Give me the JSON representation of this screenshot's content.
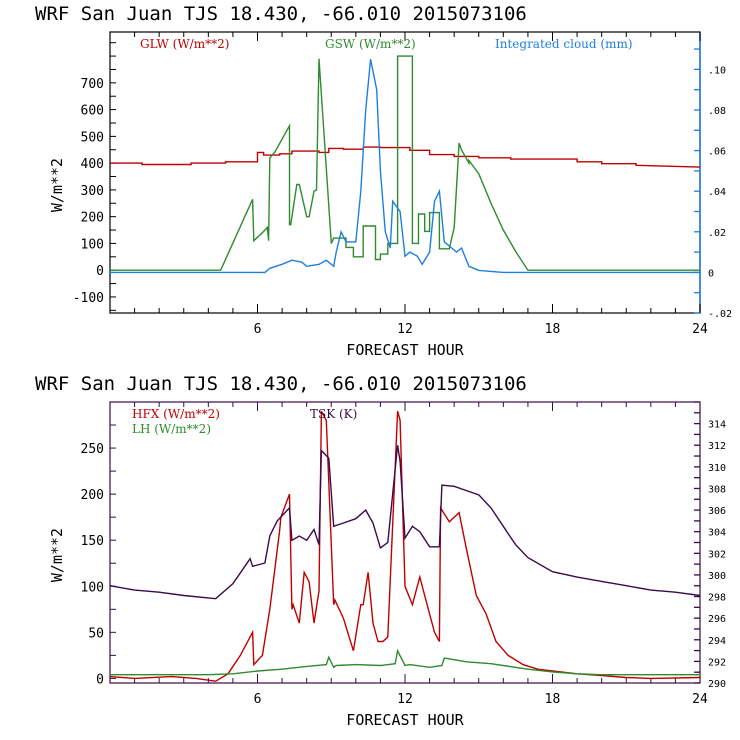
{
  "chart_data": [
    {
      "type": "line",
      "title": "WRF  San Juan TJS  18.430, -66.010  2015073106",
      "xlabel": "FORECAST HOUR",
      "ylabel": "W/m**2",
      "y2label": "",
      "xlim": [
        0,
        24
      ],
      "ylim": [
        -160,
        890
      ],
      "y2lim": [
        -0.02,
        0.1184
      ],
      "xticks": [
        "6",
        "12",
        "18",
        "24"
      ],
      "yticks": [
        "-100",
        "0",
        "100",
        "200",
        "300",
        "400",
        "500",
        "600",
        "700"
      ],
      "y2ticks": [
        "-.02",
        "0",
        ".02",
        ".04",
        ".06",
        ".08",
        ".10"
      ],
      "grid": false,
      "legend_position": "top",
      "series": [
        {
          "name": "GLW (W/m**2)",
          "color": "#c00000",
          "axis": "left",
          "x": [
            0,
            1.3,
            1.3,
            3.3,
            3.3,
            4.7,
            4.7,
            6,
            6,
            6.25,
            6.25,
            6.9,
            6.9,
            7.4,
            7.4,
            8.5,
            8.5,
            8.9,
            8.9,
            9.5,
            9.5,
            10.3,
            10.3,
            11.0,
            11.0,
            12.2,
            12.2,
            13.0,
            13.0,
            14.0,
            14.0,
            15.0,
            15.0,
            16.3,
            16.3,
            19.0,
            19.0,
            20.0,
            20.0,
            21.4,
            21.4,
            24
          ],
          "y": [
            400,
            400,
            395,
            395,
            400,
            400,
            405,
            405,
            440,
            440,
            430,
            430,
            435,
            435,
            445,
            445,
            440,
            440,
            455,
            455,
            452,
            452,
            460,
            460,
            458,
            458,
            448,
            448,
            432,
            432,
            425,
            425,
            420,
            420,
            415,
            415,
            405,
            405,
            398,
            398,
            392,
            385
          ]
        },
        {
          "name": "GSW (W/m**2)",
          "color": "#2e8b2e",
          "axis": "left",
          "x": [
            0,
            4.5,
            4.6,
            5.8,
            5.85,
            6.2,
            6.4,
            6.45,
            6.5,
            6.7,
            7.3,
            7.3,
            7.35,
            7.6,
            7.7,
            8.0,
            8.1,
            8.3,
            8.4,
            8.5,
            8.5,
            9.0,
            9.0,
            9.1,
            9.6,
            9.6,
            9.9,
            9.9,
            10.3,
            10.3,
            10.8,
            10.8,
            11.0,
            11.0,
            11.3,
            11.3,
            11.7,
            11.7,
            12.3,
            12.3,
            12.55,
            12.55,
            12.8,
            12.8,
            13.0,
            13.0,
            13.4,
            13.4,
            13.8,
            14.0,
            14.2,
            14.3,
            14.6,
            14.6,
            15.0,
            15.5,
            16.0,
            16.5,
            17.0,
            24
          ],
          "y": [
            0,
            0,
            20,
            265,
            110,
            140,
            160,
            110,
            420,
            440,
            540,
            170,
            170,
            320,
            320,
            200,
            200,
            295,
            300,
            790,
            790,
            100,
            100,
            120,
            120,
            85,
            85,
            50,
            50,
            165,
            165,
            40,
            40,
            60,
            60,
            100,
            100,
            800,
            800,
            100,
            100,
            210,
            210,
            145,
            145,
            215,
            215,
            80,
            80,
            160,
            475,
            450,
            400,
            410,
            360,
            250,
            150,
            70,
            0,
            0
          ]
        },
        {
          "name": "Integrated cloud (mm)",
          "color": "#1f7fe0",
          "axis": "right",
          "x": [
            0,
            6.3,
            6.5,
            7.0,
            7.4,
            7.8,
            8.0,
            8.5,
            8.8,
            9.1,
            9.2,
            9.4,
            9.6,
            10.0,
            10.2,
            10.4,
            10.6,
            10.85,
            11.0,
            11.2,
            11.4,
            11.5,
            11.8,
            12.0,
            12.2,
            12.5,
            12.7,
            13.0,
            13.2,
            13.4,
            13.6,
            13.9,
            14.1,
            14.3,
            14.6,
            15.0,
            16,
            24
          ],
          "y": [
            0,
            0,
            0.002,
            0.004,
            0.006,
            0.005,
            0.003,
            0.004,
            0.006,
            0.003,
            0.01,
            0.02,
            0.015,
            0.015,
            0.04,
            0.08,
            0.105,
            0.09,
            0.05,
            0.02,
            0.012,
            0.035,
            0.03,
            0.008,
            0.01,
            0.008,
            0.004,
            0.01,
            0.035,
            0.04,
            0.015,
            0.012,
            0.01,
            0.012,
            0.003,
            0.001,
            0,
            0
          ]
        }
      ]
    },
    {
      "type": "line",
      "title": "WRF  San Juan TJS  18.430, -66.010  2015073106",
      "xlabel": "FORECAST HOUR",
      "ylabel": "W/m**2",
      "xlim": [
        0,
        24
      ],
      "ylim": [
        -5,
        300
      ],
      "y2lim": [
        290,
        316
      ],
      "xticks": [
        "6",
        "12",
        "18",
        "24"
      ],
      "yticks": [
        "0",
        "50",
        "100",
        "150",
        "200",
        "250"
      ],
      "y2ticks": [
        "290",
        "292",
        "294",
        "296",
        "298",
        "300",
        "302",
        "304",
        "306",
        "308",
        "310",
        "312",
        "314"
      ],
      "grid": false,
      "legend_position": "top-left",
      "series": [
        {
          "name": "HFX (W/m**2)",
          "color": "#c00000",
          "axis": "left",
          "x": [
            0,
            1.0,
            2.5,
            3.5,
            4.3,
            4.8,
            5.3,
            5.8,
            5.85,
            6.2,
            6.5,
            6.9,
            6.95,
            7.3,
            7.4,
            7.45,
            7.7,
            7.9,
            8.1,
            8.3,
            8.5,
            8.6,
            8.8,
            9.1,
            9.15,
            9.5,
            9.9,
            10.2,
            10.3,
            10.5,
            10.7,
            10.9,
            11.1,
            11.3,
            11.7,
            11.8,
            12.0,
            12.3,
            12.6,
            12.9,
            13.2,
            13.4,
            13.45,
            13.8,
            14.2,
            14.5,
            14.9,
            15.3,
            15.7,
            16.2,
            16.8,
            17.4,
            18,
            19,
            20,
            21,
            22,
            24
          ],
          "y": [
            2,
            0,
            2,
            0,
            -3,
            5,
            25,
            50,
            15,
            25,
            75,
            160,
            175,
            200,
            75,
            80,
            60,
            115,
            105,
            60,
            95,
            290,
            280,
            80,
            85,
            65,
            30,
            80,
            80,
            115,
            60,
            40,
            40,
            45,
            290,
            280,
            100,
            80,
            110,
            80,
            50,
            40,
            185,
            170,
            180,
            140,
            90,
            70,
            40,
            25,
            15,
            10,
            8,
            5,
            3,
            1,
            0,
            1
          ]
        },
        {
          "name": "LH (W/m**2)",
          "color": "#2e8b2e",
          "axis": "left",
          "x": [
            0,
            4.0,
            5.0,
            6.0,
            7.0,
            8.0,
            8.8,
            8.9,
            9.1,
            9.2,
            10.0,
            11.0,
            11.6,
            11.7,
            12.0,
            12.2,
            13.0,
            13.5,
            13.6,
            14.5,
            15.5,
            17,
            18,
            19,
            20,
            24
          ],
          "y": [
            4,
            4,
            5,
            8,
            10,
            13,
            15,
            23,
            12,
            14,
            15,
            14,
            16,
            30,
            14,
            15,
            12,
            14,
            22,
            18,
            16,
            10,
            7,
            5,
            4,
            4
          ]
        },
        {
          "name": "TSK (K)",
          "color": "#3a0a4a",
          "axis": "right",
          "x": [
            0,
            1,
            2,
            3,
            4.3,
            5.0,
            5.7,
            5.8,
            6.3,
            6.5,
            6.8,
            7.3,
            7.4,
            7.7,
            8.0,
            8.3,
            8.5,
            8.6,
            8.9,
            9.1,
            9.5,
            10.0,
            10.4,
            10.7,
            11.0,
            11.3,
            11.7,
            11.8,
            12.0,
            12.3,
            12.6,
            13.0,
            13.4,
            13.5,
            14.0,
            14.5,
            15.0,
            15.5,
            16.0,
            16.5,
            17.0,
            18,
            19,
            20,
            21,
            22,
            23,
            24
          ],
          "y": [
            299,
            298.6,
            298.4,
            298.1,
            297.8,
            299.2,
            301.5,
            300.8,
            301.1,
            303.6,
            305,
            306.2,
            303.2,
            303.6,
            303.2,
            304.2,
            302.8,
            311.5,
            310.8,
            304.5,
            304.8,
            305.2,
            306.0,
            304.8,
            302.5,
            303.0,
            312.0,
            310.5,
            303.4,
            304.5,
            304.0,
            302.6,
            302.6,
            308.3,
            308.2,
            307.8,
            307.4,
            306.2,
            304.5,
            302.8,
            301.6,
            300.3,
            299.8,
            299.4,
            299.0,
            298.6,
            298.4,
            298.1
          ]
        }
      ]
    }
  ]
}
